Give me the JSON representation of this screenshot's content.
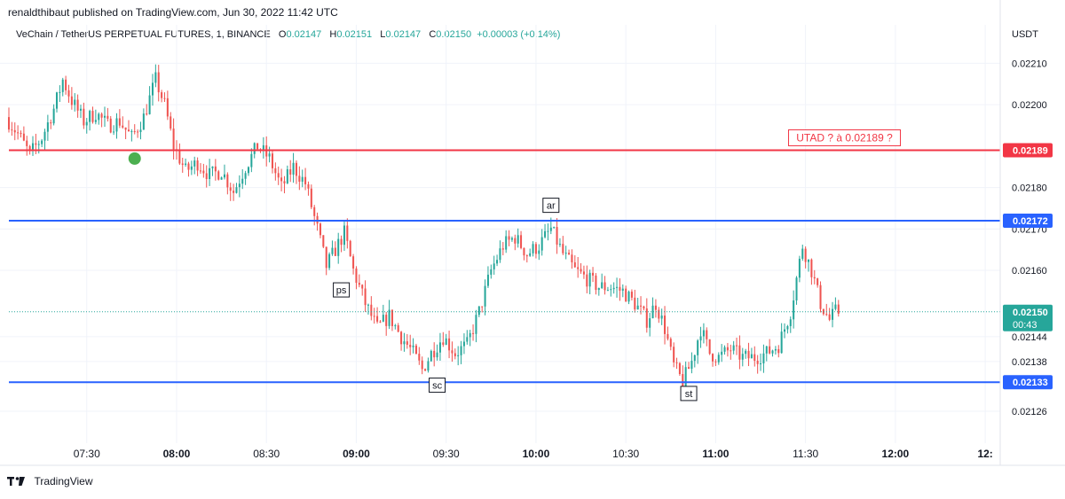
{
  "publisher": "renaldthibaut published on TradingView.com, Jun 30, 2022 11:42 UTC",
  "legend": {
    "symbol": "VeChain / TetherUS PERPETUAL FUTURES, 1, BINANCE",
    "o_label": "O",
    "o_val": "0.02147",
    "h_label": "H",
    "h_val": "0.02151",
    "l_label": "L",
    "l_val": "0.02147",
    "c_label": "C",
    "c_val": "0.02150",
    "change": "+0.00003 (+0.14%)"
  },
  "colors": {
    "up": "#26a69a",
    "down": "#ef5350",
    "resistance_red": "#f23645",
    "support_blue": "#2962ff",
    "price_line": "#26a69a",
    "marker_green": "#4caf50"
  },
  "footer": {
    "brand": "TradingView"
  },
  "chart_data": {
    "type": "candlestick",
    "currency": "USDT",
    "ylim": [
      0.0212,
      0.02215
    ],
    "y_ticks": [
      "0.02210",
      "0.02200",
      "0.02180",
      "0.02170",
      "0.02160",
      "0.02144",
      "0.02138",
      "0.02126"
    ],
    "x_ticks": [
      {
        "label": "07:30",
        "t": 30
      },
      {
        "label": "08:00",
        "t": 60
      },
      {
        "label": "08:30",
        "t": 90
      },
      {
        "label": "09:00",
        "t": 120
      },
      {
        "label": "09:30",
        "t": 150
      },
      {
        "label": "10:00",
        "t": 180
      },
      {
        "label": "10:30",
        "t": 210
      },
      {
        "label": "11:00",
        "t": 240
      },
      {
        "label": "11:30",
        "t": 270
      },
      {
        "label": "12:00",
        "t": 300
      },
      {
        "label": "12:",
        "t": 330
      }
    ],
    "t_range": [
      4,
      335
    ],
    "horizontal_lines": [
      {
        "price": 0.02189,
        "label": "0.02189",
        "kind": "resistance"
      },
      {
        "price": 0.02172,
        "label": "0.02172",
        "kind": "support"
      },
      {
        "price": 0.02133,
        "label": "0.02133",
        "kind": "support"
      }
    ],
    "last_price": {
      "price": 0.0215,
      "label": "0.02150",
      "countdown": "00:43"
    },
    "annotations": [
      {
        "text": "UTAD ? à 0.02189 ?",
        "t": 283,
        "price": 0.02192,
        "kind": "callout"
      },
      {
        "text": "ar",
        "t": 185,
        "price": 0.02174,
        "kind": "label-above"
      },
      {
        "text": "ps",
        "t": 115,
        "price": 0.02157,
        "kind": "label-below"
      },
      {
        "text": "sc",
        "t": 147,
        "price": 0.02134,
        "kind": "label-below"
      },
      {
        "text": "st",
        "t": 231,
        "price": 0.02132,
        "kind": "label-below"
      }
    ],
    "dot_marker": {
      "t": 46,
      "price": 0.02187
    },
    "price_path": [
      [
        4,
        0.02197
      ],
      [
        8,
        0.02193
      ],
      [
        12,
        0.02188
      ],
      [
        16,
        0.02192
      ],
      [
        20,
        0.02199
      ],
      [
        23,
        0.02206
      ],
      [
        26,
        0.02201
      ],
      [
        30,
        0.02196
      ],
      [
        34,
        0.02198
      ],
      [
        38,
        0.02195
      ],
      [
        42,
        0.02196
      ],
      [
        46,
        0.02192
      ],
      [
        50,
        0.02197
      ],
      [
        54,
        0.02206
      ],
      [
        57,
        0.022
      ],
      [
        60,
        0.0219
      ],
      [
        64,
        0.02184
      ],
      [
        68,
        0.02186
      ],
      [
        72,
        0.02183
      ],
      [
        76,
        0.02184
      ],
      [
        80,
        0.02179
      ],
      [
        84,
        0.02185
      ],
      [
        88,
        0.0219
      ],
      [
        92,
        0.02187
      ],
      [
        96,
        0.0218
      ],
      [
        100,
        0.02185
      ],
      [
        104,
        0.02181
      ],
      [
        108,
        0.0217
      ],
      [
        111,
        0.02161
      ],
      [
        114,
        0.02165
      ],
      [
        117,
        0.02169
      ],
      [
        120,
        0.0216
      ],
      [
        124,
        0.02152
      ],
      [
        128,
        0.02146
      ],
      [
        132,
        0.02149
      ],
      [
        136,
        0.02144
      ],
      [
        140,
        0.0214
      ],
      [
        143,
        0.02136
      ],
      [
        146,
        0.0214
      ],
      [
        150,
        0.02144
      ],
      [
        154,
        0.0214
      ],
      [
        158,
        0.02142
      ],
      [
        162,
        0.0215
      ],
      [
        166,
        0.0216
      ],
      [
        170,
        0.02166
      ],
      [
        174,
        0.02168
      ],
      [
        178,
        0.02164
      ],
      [
        182,
        0.02166
      ],
      [
        186,
        0.0217
      ],
      [
        190,
        0.02164
      ],
      [
        194,
        0.0216
      ],
      [
        198,
        0.02158
      ],
      [
        202,
        0.02156
      ],
      [
        206,
        0.02156
      ],
      [
        210,
        0.02155
      ],
      [
        214,
        0.02152
      ],
      [
        218,
        0.02148
      ],
      [
        221,
        0.02152
      ],
      [
        224,
        0.02146
      ],
      [
        227,
        0.02137
      ],
      [
        230,
        0.02133
      ],
      [
        233,
        0.02138
      ],
      [
        236,
        0.02146
      ],
      [
        239,
        0.0214
      ],
      [
        242,
        0.02139
      ],
      [
        246,
        0.02141
      ],
      [
        250,
        0.02139
      ],
      [
        254,
        0.02139
      ],
      [
        258,
        0.0214
      ],
      [
        262,
        0.02142
      ],
      [
        266,
        0.0215
      ],
      [
        268,
        0.02158
      ],
      [
        270,
        0.02166
      ],
      [
        273,
        0.0216
      ],
      [
        276,
        0.02152
      ],
      [
        279,
        0.02148
      ],
      [
        281,
        0.0215
      ]
    ]
  }
}
